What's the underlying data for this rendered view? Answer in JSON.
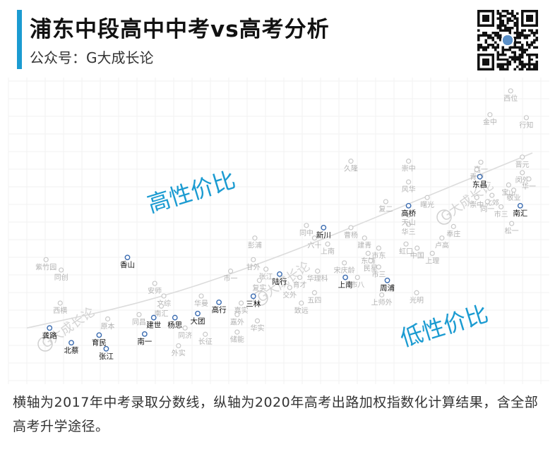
{
  "header": {
    "title": "浦东中段高中中考vs高考分析",
    "subtitle": "公众号：G大成长论"
  },
  "colors": {
    "accent": "#1b9bd1",
    "highlight_point": "#3a6bb0",
    "gray_point": "#c8c8c8",
    "gray_label": "#b3b3b3",
    "annotation_text": "#1b9bd1",
    "trend_line": "#dcdcdc"
  },
  "icons": {
    "qr": "qr-code-icon",
    "watermark": "g-logo-watermark-icon"
  },
  "watermark_text": "G大成长论",
  "caption": "横轴为2017年中考录取分数线，纵轴为2020年高考出路加权指数化计算结果，含全部高考升学途径。",
  "chart_data": {
    "type": "scatter",
    "title": "",
    "xlabel": "",
    "ylabel": "",
    "xlim": [
      0,
      100
    ],
    "ylim": [
      0,
      100
    ],
    "grid": true,
    "annotations": [
      {
        "text": "高性价比",
        "x": 33,
        "y": 58,
        "rotate": -17
      },
      {
        "text": "低性价比",
        "x": 83,
        "y": 9,
        "rotate": -17
      }
    ],
    "trend": [
      [
        0,
        11
      ],
      [
        25,
        21
      ],
      [
        50,
        37
      ],
      [
        75,
        56
      ],
      [
        100,
        75
      ]
    ],
    "highlighted": [
      {
        "name": "龚路",
        "x": 4.5,
        "y": 11
      },
      {
        "name": "北蔡",
        "x": 8.8,
        "y": 5.6
      },
      {
        "name": "育民",
        "x": 14.3,
        "y": 8.4
      },
      {
        "name": "张江",
        "x": 15.7,
        "y": 3.4
      },
      {
        "name": "香山",
        "x": 19.9,
        "y": 36.8
      },
      {
        "name": "南一",
        "x": 23.3,
        "y": 8.8
      },
      {
        "name": "建世",
        "x": 25.1,
        "y": 14.8
      },
      {
        "name": "杨思",
        "x": 29.3,
        "y": 14.8
      },
      {
        "name": "大团",
        "x": 33.8,
        "y": 16.3
      },
      {
        "name": "高行",
        "x": 38.0,
        "y": 20.4
      },
      {
        "name": "三林",
        "x": 44.8,
        "y": 22.6
      },
      {
        "name": "陆行",
        "x": 50.0,
        "y": 30.7
      },
      {
        "name": "新川",
        "x": 58.7,
        "y": 47.7
      },
      {
        "name": "上南",
        "x": 63.0,
        "y": 29.5
      },
      {
        "name": "周浦",
        "x": 71.3,
        "y": 28.4
      },
      {
        "name": "高桥",
        "x": 75.5,
        "y": 55.7
      },
      {
        "name": "东昌",
        "x": 89.6,
        "y": 66.3
      },
      {
        "name": "南汇",
        "x": 97.6,
        "y": 55.7
      }
    ],
    "others": [
      {
        "name": "西位",
        "x": 95.7,
        "y": 97.7
      },
      {
        "name": "金中",
        "x": 91.6,
        "y": 89.0
      },
      {
        "name": "行知",
        "x": 98.8,
        "y": 87.9
      },
      {
        "name": "晋元",
        "x": 98.0,
        "y": 73.5
      },
      {
        "name": "闵外",
        "x": 98.0,
        "y": 67.8
      },
      {
        "name": "华一",
        "x": 99.3,
        "y": 65.5
      },
      {
        "name": "嘉一",
        "x": 89.8,
        "y": 71.6
      },
      {
        "name": "青中",
        "x": 89.0,
        "y": 68.9
      },
      {
        "name": "宝山",
        "x": 95.3,
        "y": 63.3
      },
      {
        "name": "敬业",
        "x": 96.3,
        "y": 61.4
      },
      {
        "name": "市三",
        "x": 93.8,
        "y": 55.3
      },
      {
        "name": "松一",
        "x": 95.9,
        "y": 49.2
      },
      {
        "name": "崇中",
        "x": 89.0,
        "y": 58.7
      },
      {
        "name": "北郊",
        "x": 92.0,
        "y": 59.5
      },
      {
        "name": "同一",
        "x": 91.1,
        "y": 57.2
      },
      {
        "name": "久隆",
        "x": 64.1,
        "y": 72.0
      },
      {
        "name": "崇中",
        "x": 75.5,
        "y": 72.0
      },
      {
        "name": "风华",
        "x": 75.5,
        "y": 64.4
      },
      {
        "name": "复二",
        "x": 71.0,
        "y": 57.2
      },
      {
        "name": "曙光",
        "x": 79.2,
        "y": 58.7
      },
      {
        "name": "华三",
        "x": 75.5,
        "y": 48.9
      },
      {
        "name": "天山",
        "x": 75.5,
        "y": 52.3
      },
      {
        "name": "奉庄",
        "x": 84.4,
        "y": 48.1
      },
      {
        "name": "卢高",
        "x": 82.1,
        "y": 43.9
      },
      {
        "name": "中国",
        "x": 77.2,
        "y": 40.2
      },
      {
        "name": "上理",
        "x": 80.2,
        "y": 38.3
      },
      {
        "name": "虹口",
        "x": 75.0,
        "y": 41.7
      },
      {
        "name": "市东",
        "x": 69.6,
        "y": 40.2
      },
      {
        "name": "东辅",
        "x": 67.5,
        "y": 38.3
      },
      {
        "name": "民星",
        "x": 68.0,
        "y": 35.6
      },
      {
        "name": "市三",
        "x": 69.6,
        "y": 33.3
      },
      {
        "name": "市八",
        "x": 65.4,
        "y": 29.5
      },
      {
        "name": "上师外",
        "x": 70.2,
        "y": 23.1
      },
      {
        "name": "光明",
        "x": 77.1,
        "y": 23.9
      },
      {
        "name": "曹杨",
        "x": 64.1,
        "y": 47.7
      },
      {
        "name": "建青",
        "x": 66.8,
        "y": 43.9
      },
      {
        "name": "宋庆龄",
        "x": 62.8,
        "y": 34.8
      },
      {
        "name": "同中",
        "x": 55.3,
        "y": 48.5
      },
      {
        "name": "六十",
        "x": 56.9,
        "y": 43.9
      },
      {
        "name": "上南",
        "x": 59.5,
        "y": 41.7
      },
      {
        "name": "华理科",
        "x": 57.5,
        "y": 31.8
      },
      {
        "name": "育才",
        "x": 54.0,
        "y": 29.5
      },
      {
        "name": "五四",
        "x": 56.9,
        "y": 23.9
      },
      {
        "name": "致远",
        "x": 54.3,
        "y": 20.1
      },
      {
        "name": "彭浦",
        "x": 45.1,
        "y": 43.9
      },
      {
        "name": "甘外",
        "x": 44.8,
        "y": 36.0
      },
      {
        "name": "市一",
        "x": 40.3,
        "y": 31.8
      },
      {
        "name": "张江",
        "x": 47.3,
        "y": 32.5
      },
      {
        "name": "复实",
        "x": 46.0,
        "y": 28.4
      },
      {
        "name": "交外",
        "x": 52.0,
        "y": 25.8
      },
      {
        "name": "嘉实",
        "x": 42.4,
        "y": 20.1
      },
      {
        "name": "嘉外",
        "x": 41.6,
        "y": 15.9
      },
      {
        "name": "华实",
        "x": 45.6,
        "y": 13.6
      },
      {
        "name": "储能",
        "x": 41.6,
        "y": 9.5
      },
      {
        "name": "华曼",
        "x": 34.5,
        "y": 22.7
      },
      {
        "name": "安师",
        "x": 25.3,
        "y": 27.3
      },
      {
        "name": "文综",
        "x": 27.1,
        "y": 22.7
      },
      {
        "name": "南汇",
        "x": 26.6,
        "y": 19.0
      },
      {
        "name": "同济",
        "x": 31.3,
        "y": 11.0
      },
      {
        "name": "长征",
        "x": 35.3,
        "y": 8.7
      },
      {
        "name": "外实",
        "x": 30.0,
        "y": 4.5
      },
      {
        "name": "原本",
        "x": 16.0,
        "y": 14.3
      },
      {
        "name": "同昌",
        "x": 22.2,
        "y": 15.9
      },
      {
        "name": "西横",
        "x": 6.6,
        "y": 20.1
      },
      {
        "name": "紫竹园",
        "x": 3.8,
        "y": 36.0
      },
      {
        "name": "同创",
        "x": 6.8,
        "y": 32.2
      }
    ]
  }
}
